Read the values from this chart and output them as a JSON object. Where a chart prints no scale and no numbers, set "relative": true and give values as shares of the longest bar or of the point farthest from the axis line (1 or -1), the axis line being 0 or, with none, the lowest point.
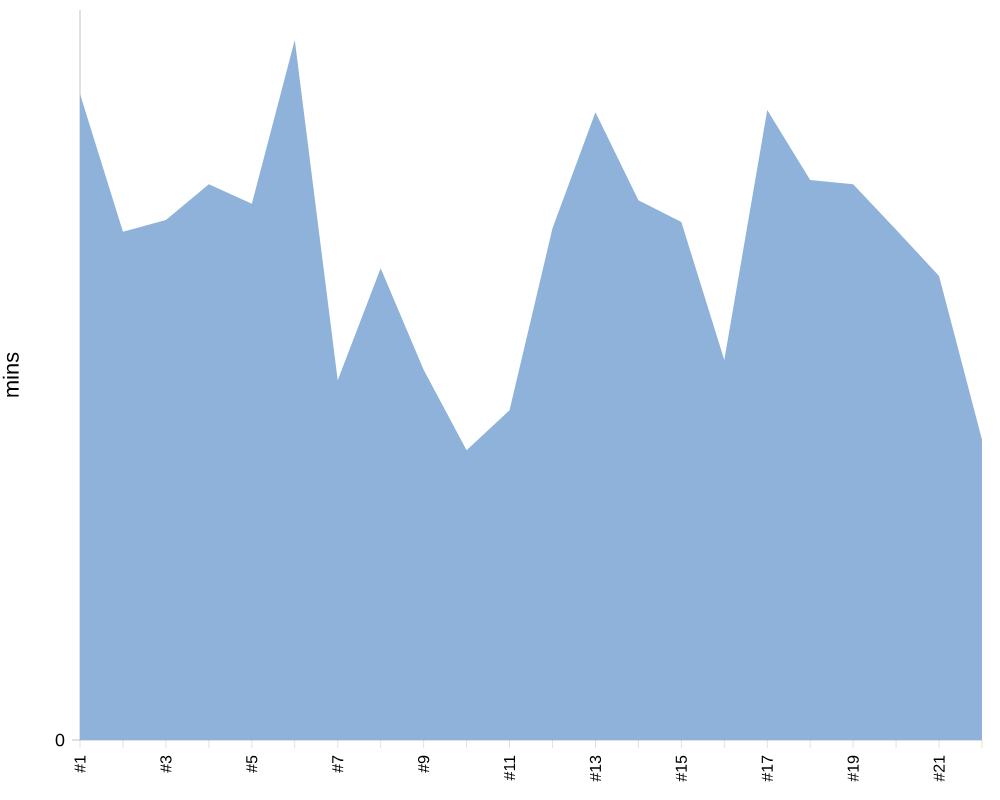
{
  "chart_data": {
    "type": "area",
    "ylabel": "mins",
    "relative": true,
    "color": "#8fb2da",
    "categories": [
      "#1",
      null,
      "#3",
      null,
      "#5",
      null,
      "#7",
      null,
      "#9",
      null,
      "#11",
      null,
      "#13",
      null,
      "#15",
      null,
      "#17",
      null,
      "#19",
      null,
      "#21",
      null
    ],
    "values": [
      0.923,
      0.726,
      0.743,
      0.794,
      0.766,
      1,
      0.514,
      0.674,
      0.529,
      0.414,
      0.471,
      0.731,
      0.897,
      0.771,
      0.74,
      0.543,
      0.9,
      0.8,
      0.794,
      0.729,
      0.663,
      0.429
    ],
    "annotations": [
      "0"
    ]
  }
}
